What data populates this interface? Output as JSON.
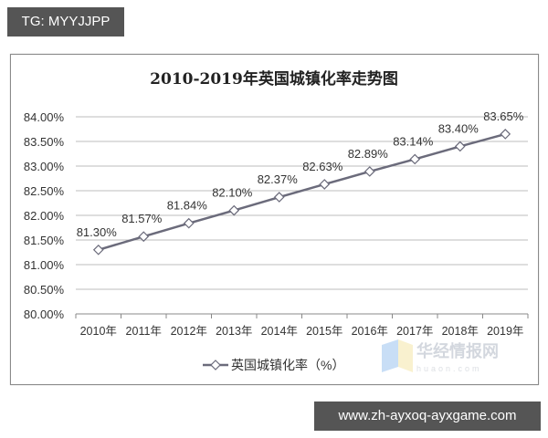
{
  "overlays": {
    "tag_label": "TG: MYYJJPP",
    "url_label": "www.zh-ayxoq-ayxgame.com"
  },
  "watermark": {
    "cn": "华经情报网",
    "en": "huaon.com"
  },
  "chart_data": {
    "type": "line",
    "title": "2010-2019年英国城镇化率走势图",
    "xlabel": "",
    "ylabel": "",
    "categories": [
      "2010年",
      "2011年",
      "2012年",
      "2013年",
      "2014年",
      "2015年",
      "2016年",
      "2017年",
      "2018年",
      "2019年"
    ],
    "series": [
      {
        "name": "英国城镇化率（%）",
        "values": [
          81.3,
          81.57,
          81.84,
          82.1,
          82.37,
          82.63,
          82.89,
          83.14,
          83.4,
          83.65
        ],
        "labels": [
          "81.30%",
          "81.57%",
          "81.84%",
          "82.10%",
          "82.37%",
          "82.63%",
          "82.89%",
          "83.14%",
          "83.40%",
          "83.65%"
        ],
        "color": "#6b6b7b",
        "marker": "diamond"
      }
    ],
    "ylim": [
      80.0,
      84.0
    ],
    "yticks": [
      "84.00%",
      "83.50%",
      "83.00%",
      "82.50%",
      "82.00%",
      "81.50%",
      "81.00%",
      "80.50%",
      "80.00%"
    ],
    "grid": true,
    "legend_position": "bottom"
  }
}
